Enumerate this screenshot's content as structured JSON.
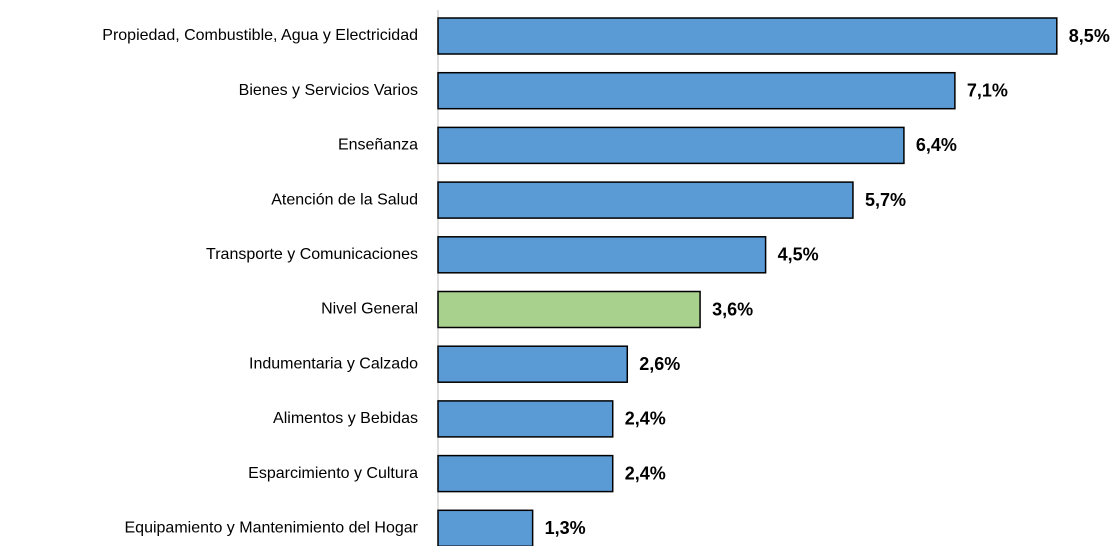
{
  "chart_data": {
    "type": "barh",
    "categories": [
      "Propiedad, Combustible, Agua y Electricidad",
      "Bienes y Servicios Varios",
      "Enseñanza",
      "Atención de la Salud",
      "Transporte y Comunicaciones",
      "Nivel General",
      "Indumentaria y Calzado",
      "Alimentos y Bebidas",
      "Esparcimiento y Cultura",
      "Equipamiento y Mantenimiento del Hogar"
    ],
    "values": [
      8.5,
      7.1,
      6.4,
      5.7,
      4.5,
      3.6,
      2.6,
      2.4,
      2.4,
      1.3
    ],
    "value_labels": [
      "8,5%",
      "7,1%",
      "6,4%",
      "5,7%",
      "4,5%",
      "3,6%",
      "2,6%",
      "2,4%",
      "2,4%",
      "1,3%"
    ],
    "colors": [
      "#5b9bd5",
      "#5b9bd5",
      "#5b9bd5",
      "#5b9bd5",
      "#5b9bd5",
      "#a9d18e",
      "#5b9bd5",
      "#5b9bd5",
      "#5b9bd5",
      "#5b9bd5"
    ]
  }
}
